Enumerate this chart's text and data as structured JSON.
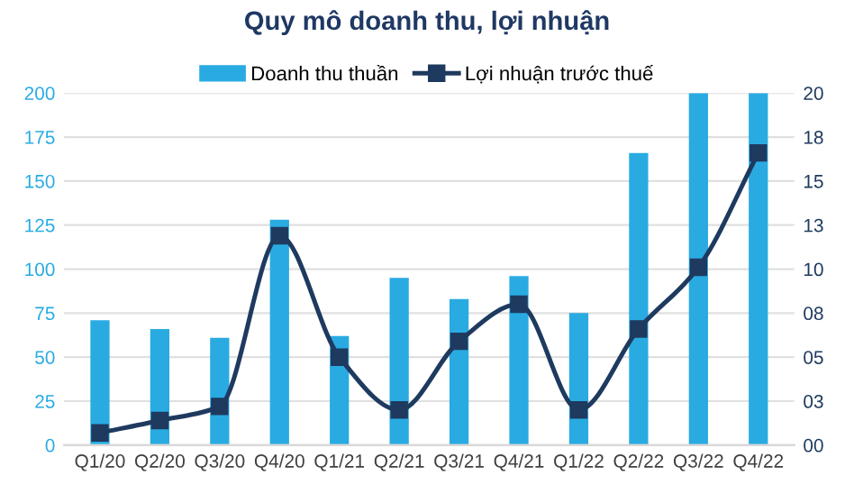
{
  "chart_data": {
    "type": "bar",
    "title": "Quy mô doanh thu, lợi nhuận",
    "categories": [
      "Q1/20",
      "Q2/20",
      "Q3/20",
      "Q4/20",
      "Q1/21",
      "Q2/21",
      "Q3/21",
      "Q4/21",
      "Q1/22",
      "Q2/22",
      "Q3/22",
      "Q4/22"
    ],
    "series": [
      {
        "name": "Doanh thu thuần",
        "color": "#29abe2",
        "values": [
          71,
          66,
          61,
          128,
          62,
          95,
          83,
          96,
          75,
          166,
          200,
          200
        ]
      },
      {
        "name": "Lợi nhuận trước thuế",
        "type": "line",
        "axis": "y2",
        "color": "#1f3a5f",
        "marker": "square",
        "values": [
          0.7,
          1.4,
          2.2,
          11.9,
          5.0,
          2.0,
          5.9,
          8.0,
          2.0,
          6.6,
          10.1,
          16.6
        ]
      }
    ],
    "ylim": [
      0,
      200
    ],
    "yticks": [
      0,
      25,
      50,
      75,
      100,
      125,
      150,
      175,
      200
    ],
    "y2lim": [
      0,
      20
    ],
    "y2ticks": [
      {
        "value": 0,
        "label": "00"
      },
      {
        "value": 2.5,
        "label": "03"
      },
      {
        "value": 5,
        "label": "05"
      },
      {
        "value": 7.5,
        "label": "08"
      },
      {
        "value": 10,
        "label": "10"
      },
      {
        "value": 12.5,
        "label": "13"
      },
      {
        "value": 15,
        "label": "15"
      },
      {
        "value": 17.5,
        "label": "18"
      },
      {
        "value": 20,
        "label": "20"
      }
    ],
    "grid": "y",
    "legend": "top"
  }
}
